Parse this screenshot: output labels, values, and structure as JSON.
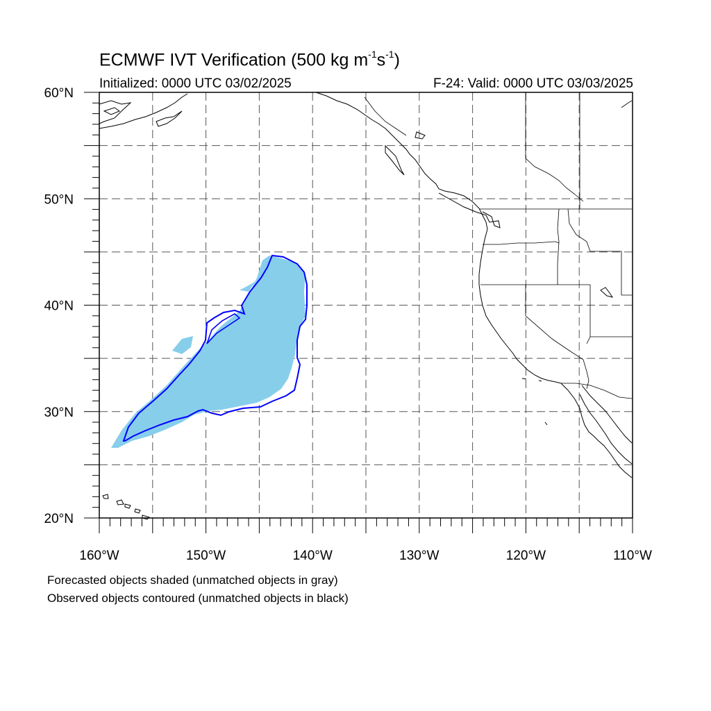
{
  "title": {
    "prefix": "ECMWF IVT Verification (500 kg m",
    "sup1": "-1",
    "middle": "s",
    "sup2": "-1",
    "suffix": ")"
  },
  "initialized": "Initialized: 0000 UTC 03/02/2025",
  "valid": "F-24: Valid: 0000 UTC 03/03/2025",
  "notes": [
    "Forecasted objects shaded (unmatched objects in gray)",
    "Observed objects contoured (unmatched objects in black)"
  ],
  "map": {
    "lon_range": [
      -160,
      -110
    ],
    "lat_range": [
      20,
      60
    ],
    "lat_labels": [
      {
        "value": 20,
        "text": "20°N"
      },
      {
        "value": 30,
        "text": "30°N"
      },
      {
        "value": 40,
        "text": "40°N"
      },
      {
        "value": 50,
        "text": "50°N"
      },
      {
        "value": 60,
        "text": "60°N"
      }
    ],
    "lon_labels": [
      {
        "value": -160,
        "text": "160°W"
      },
      {
        "value": -150,
        "text": "150°W"
      },
      {
        "value": -140,
        "text": "140°W"
      },
      {
        "value": -130,
        "text": "130°W"
      },
      {
        "value": -120,
        "text": "120°W"
      },
      {
        "value": -110,
        "text": "110°W"
      }
    ],
    "forecast_fill_color": "#87ceeb",
    "observed_contour_color": "#0000ff"
  }
}
